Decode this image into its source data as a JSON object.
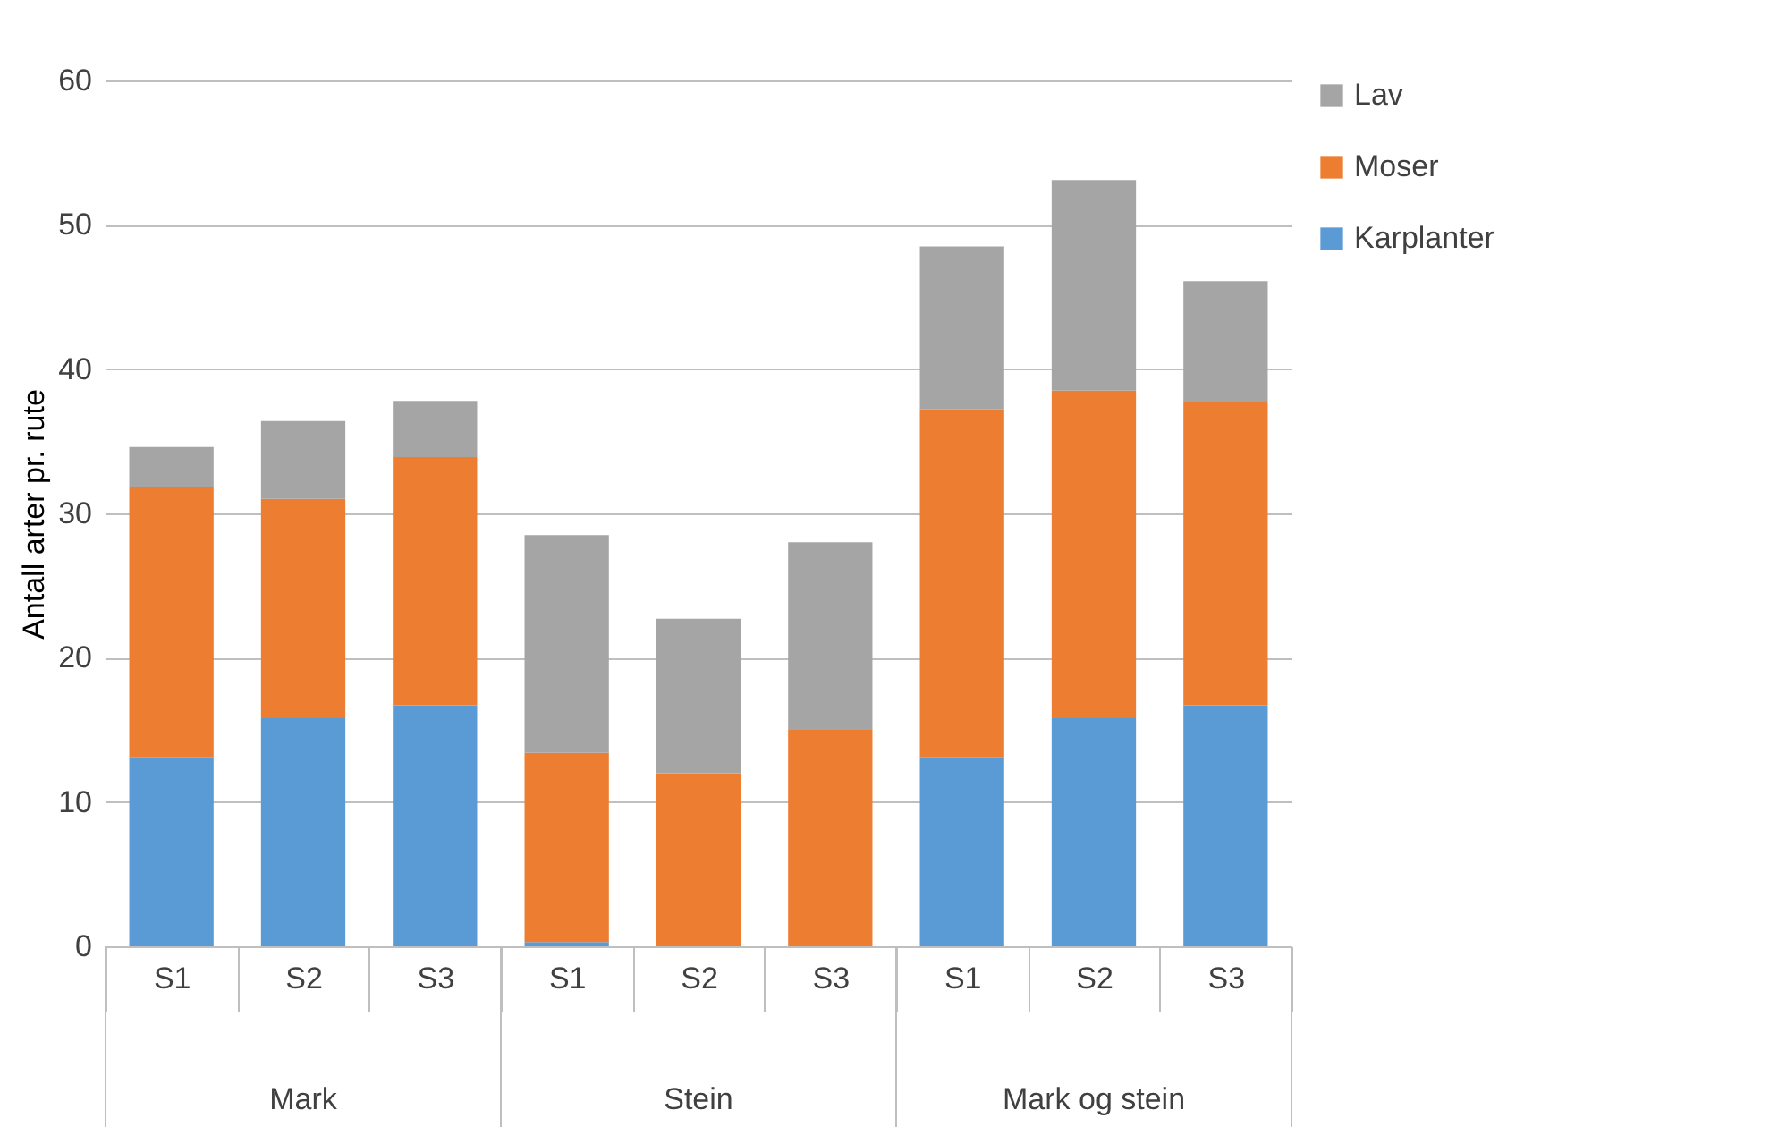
{
  "chart_data": {
    "type": "bar",
    "stacked": true,
    "ylabel": "Antall arter pr. rute",
    "categories": [
      "S1",
      "S2",
      "S3",
      "S1",
      "S2",
      "S3",
      "S1",
      "S2",
      "S3"
    ],
    "series": [
      {
        "name": "Karplanter",
        "color": "#5b9bd5",
        "values": [
          13.1,
          15.8,
          16.7,
          0.3,
          0,
          0,
          13.1,
          15.8,
          16.7
        ]
      },
      {
        "name": "Moser",
        "color": "#ed7d31",
        "values": [
          18.7,
          15.2,
          17.2,
          13.1,
          12.0,
          15.0,
          24.1,
          22.7,
          21.0
        ]
      },
      {
        "name": "Lav",
        "color": "#a5a5a5",
        "values": [
          2.8,
          5.4,
          3.9,
          15.1,
          10.7,
          13.0,
          11.3,
          14.6,
          8.4
        ]
      }
    ],
    "annotations": [
      "Mark",
      "Stein",
      "Mark og stein"
    ],
    "ylim": [
      0,
      60
    ],
    "yticks": [
      0,
      10,
      20,
      30,
      40,
      50,
      60
    ],
    "grid": "y",
    "legend": "right"
  }
}
